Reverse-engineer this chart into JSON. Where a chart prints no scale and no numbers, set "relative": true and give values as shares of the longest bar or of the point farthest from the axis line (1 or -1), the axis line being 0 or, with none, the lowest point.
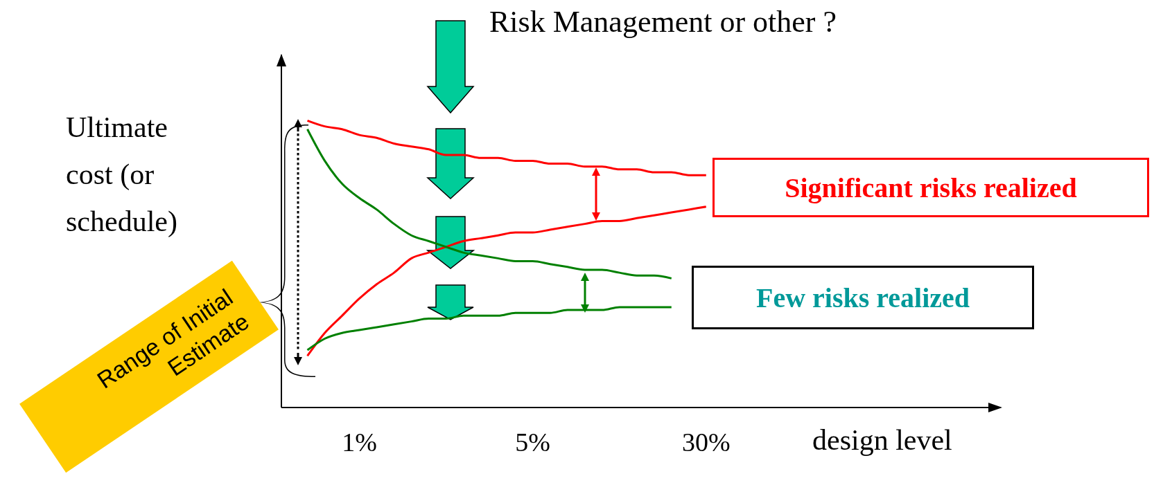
{
  "chart_data": {
    "type": "line",
    "relative": true,
    "title": "Risk Management or other ?",
    "xlabel": "design level",
    "ylabel": "Ultimate cost (or schedule)",
    "categories": [
      null,
      null,
      null,
      "1%",
      null,
      null,
      null,
      null,
      null,
      null,
      null,
      null,
      null,
      "5%",
      null,
      null,
      null,
      null,
      null,
      null,
      null,
      null,
      null,
      "30%"
    ],
    "series": [
      {
        "color": "#ff0000",
        "values": [
          1.0,
          0.98,
          0.97,
          0.95,
          0.94,
          0.92,
          0.91,
          0.9,
          0.88,
          0.88,
          0.87,
          0.87,
          0.86,
          0.86,
          0.85,
          0.85,
          0.84,
          0.84,
          0.83,
          0.83,
          0.82,
          0.82,
          0.81,
          0.81
        ]
      },
      {
        "color": "#ff0000",
        "values": [
          0.18,
          0.26,
          0.32,
          0.38,
          0.43,
          0.47,
          0.52,
          0.54,
          0.56,
          0.58,
          0.59,
          0.6,
          0.61,
          0.61,
          0.62,
          0.63,
          0.64,
          0.65,
          0.65,
          0.66,
          0.67,
          0.68,
          0.69,
          0.7
        ]
      },
      {
        "color": "#008000",
        "values": [
          0.97,
          0.86,
          0.78,
          0.73,
          0.69,
          0.64,
          0.6,
          0.58,
          0.56,
          0.54,
          0.53,
          0.52,
          0.51,
          0.51,
          0.5,
          0.49,
          0.48,
          0.48,
          0.47,
          0.46,
          0.46,
          0.45,
          null,
          null
        ]
      },
      {
        "color": "#008000",
        "values": [
          0.2,
          0.24,
          0.26,
          0.27,
          0.28,
          0.29,
          0.3,
          0.31,
          0.31,
          0.32,
          0.32,
          0.32,
          0.33,
          0.33,
          0.33,
          0.34,
          0.34,
          0.34,
          0.35,
          0.35,
          0.35,
          0.35,
          null,
          null
        ]
      }
    ],
    "line_style": "solid",
    "annotations": [
      "Significant risks realized",
      "Few risks realized",
      "Range of Initial Estimate"
    ]
  }
}
